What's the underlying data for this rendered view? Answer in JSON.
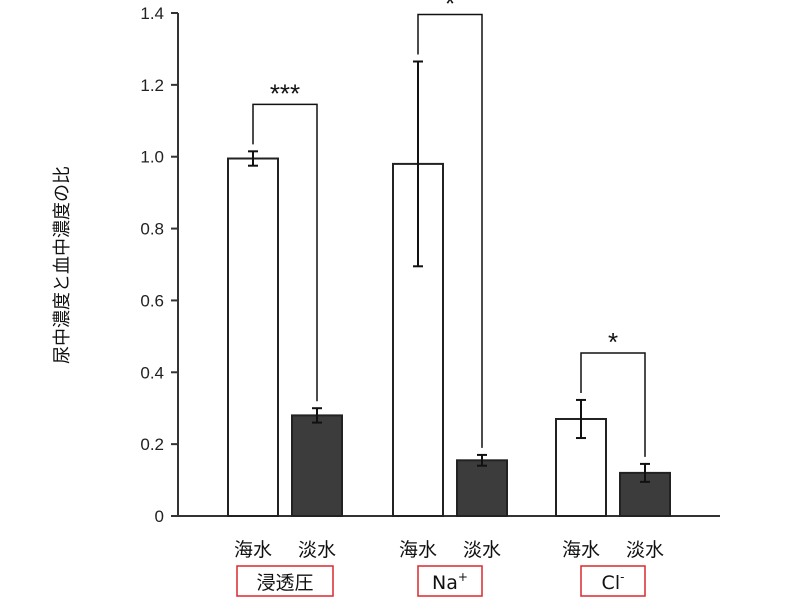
{
  "chart_data": {
    "type": "bar",
    "ylabel": "尿中濃度と血中濃度の比",
    "ylim": [
      0,
      1.4
    ],
    "yticks": [
      "0",
      "0.2",
      "0.4",
      "0.6",
      "0.8",
      "1.0",
      "1.2",
      "1.4"
    ],
    "groups": [
      {
        "label": "浸透圧",
        "label_sup": "",
        "bars": [
          {
            "category": "海水",
            "value": 0.995,
            "error": 0.02,
            "fill": "#ffffff"
          },
          {
            "category": "淡水",
            "value": 0.28,
            "error": 0.02,
            "fill": "#3c3c3c"
          }
        ],
        "significance": "***"
      },
      {
        "label": "Na",
        "label_sup": "+",
        "bars": [
          {
            "category": "海水",
            "value": 0.98,
            "error": 0.285,
            "fill": "#ffffff"
          },
          {
            "category": "淡水",
            "value": 0.155,
            "error": 0.015,
            "fill": "#3c3c3c"
          }
        ],
        "significance": "*"
      },
      {
        "label": "Cl",
        "label_sup": "-",
        "bars": [
          {
            "category": "海水",
            "value": 0.27,
            "error": 0.053,
            "fill": "#ffffff"
          },
          {
            "category": "淡水",
            "value": 0.12,
            "error": 0.025,
            "fill": "#3c3c3c"
          }
        ],
        "significance": "*"
      }
    ],
    "colors": {
      "axis": "#333333",
      "bar_edge": "#222222",
      "label_box": "#d9282f"
    }
  }
}
